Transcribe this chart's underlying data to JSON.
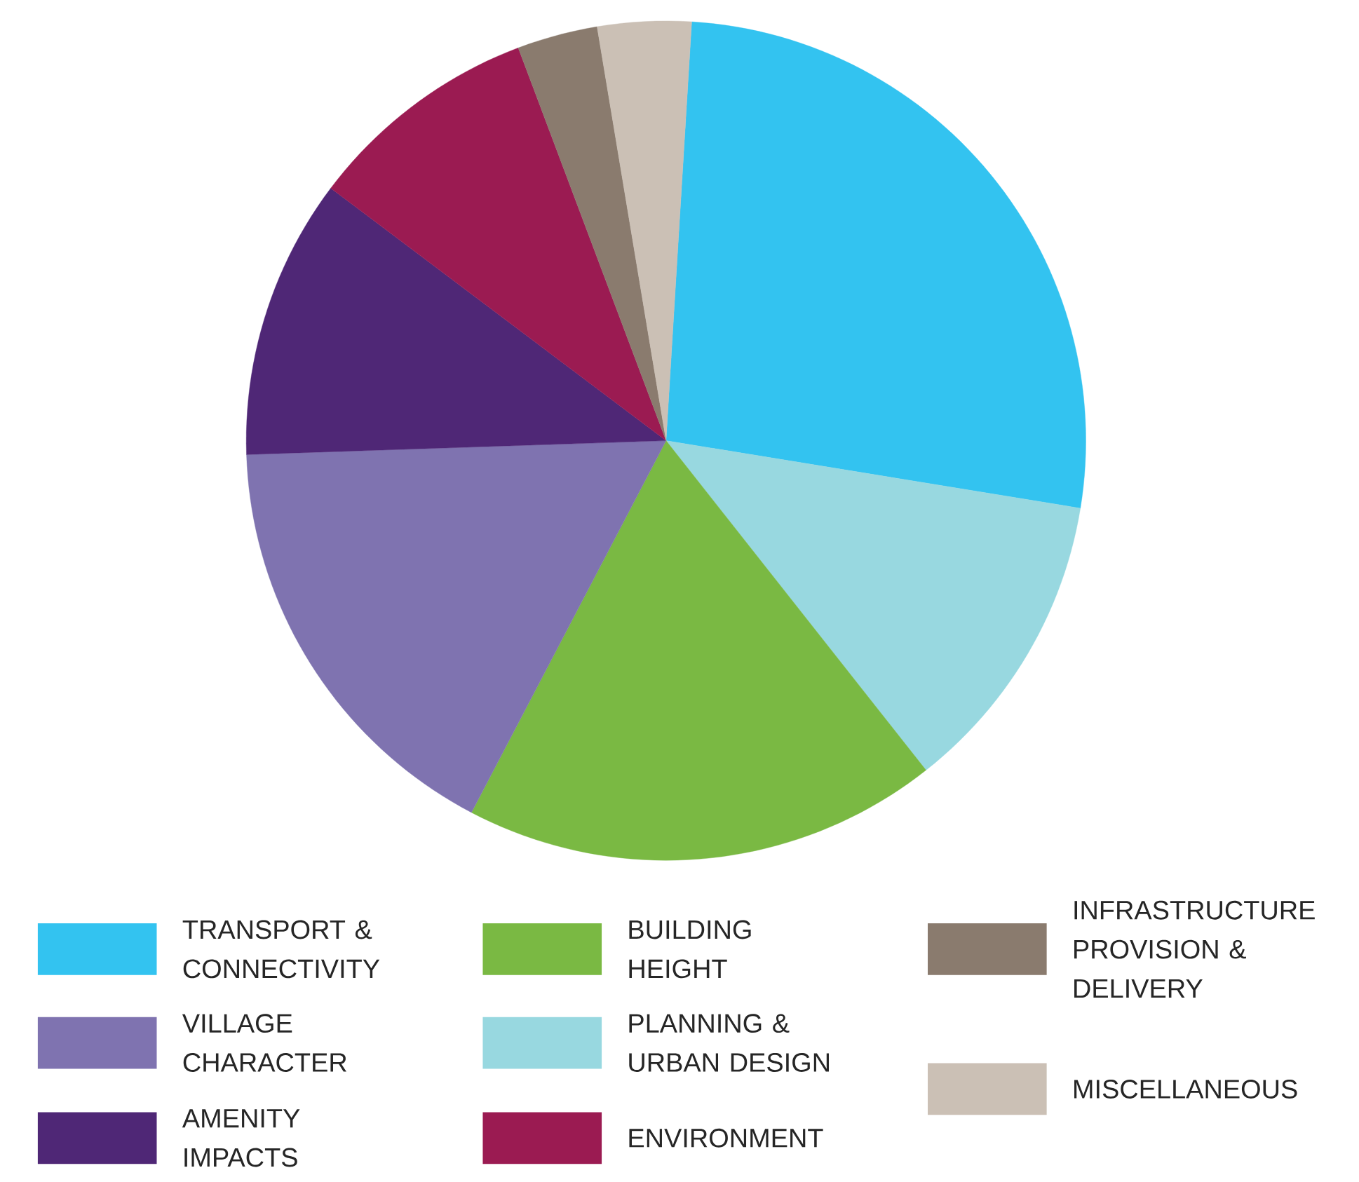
{
  "chart_data": {
    "type": "pie",
    "categories": [
      "TRANSPORT & CONNECTIVITY",
      "PLANNING & URBAN DESIGN",
      "BUILDING HEIGHT",
      "VILLAGE CHARACTER",
      "AMENITY IMPACTS",
      "ENVIRONMENT",
      "INFRASTRUCTURE PROVISION & DELIVERY",
      "MISCELLANEOUS"
    ],
    "values": [
      26.6,
      11.8,
      18.3,
      16.8,
      10.8,
      9.0,
      3.1,
      3.6
    ],
    "colors": [
      "#33c3f0",
      "#98d8e0",
      "#7ab943",
      "#7f73b0",
      "#4f2776",
      "#9b1b52",
      "#8a7b6e",
      "#cbc0b5"
    ],
    "legend": "bottom"
  }
}
